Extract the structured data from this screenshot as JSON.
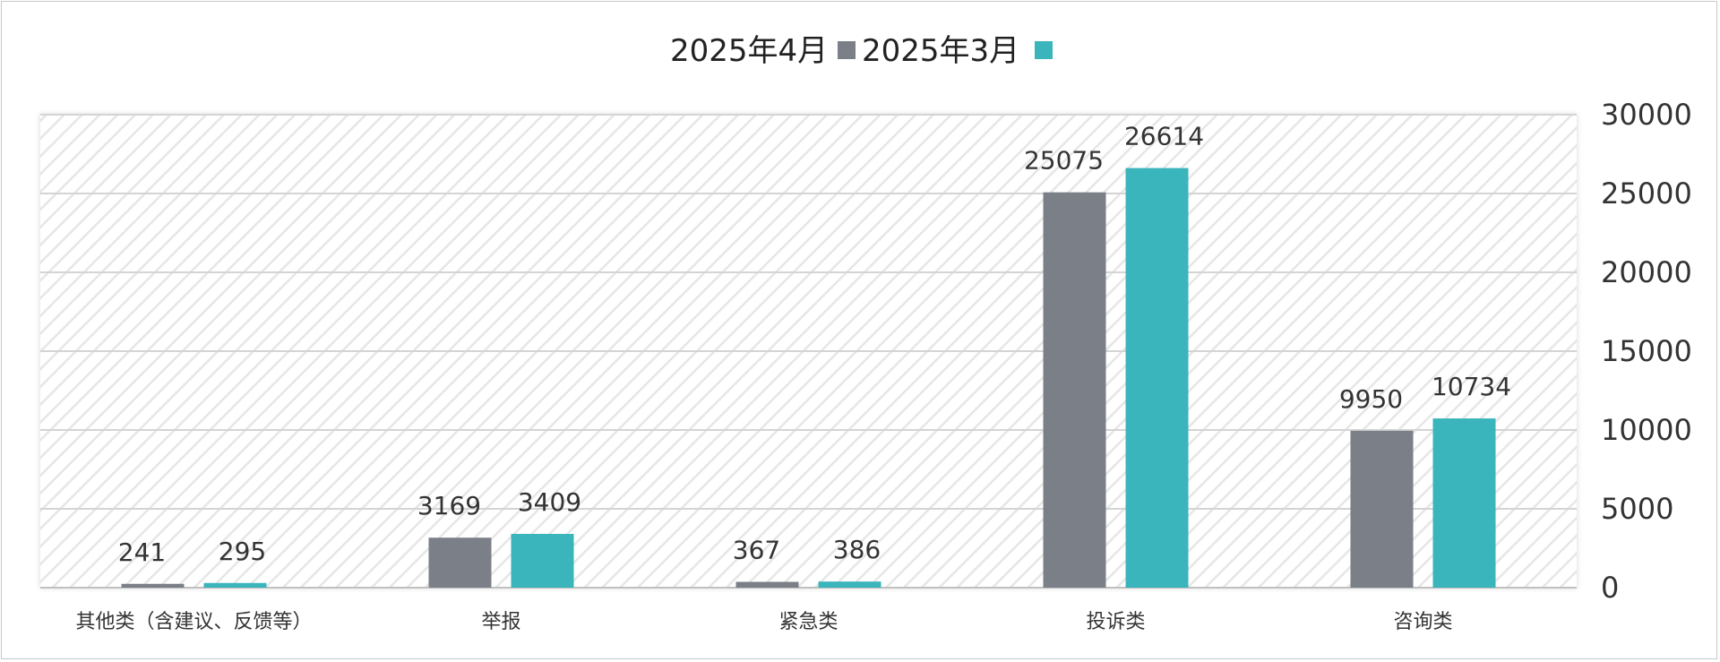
{
  "chart_data": {
    "type": "bar",
    "categories": [
      "咨询类",
      "投诉类",
      "紧急类",
      "举报",
      "其他类（含建议、反馈等）"
    ],
    "series": [
      {
        "name": "2025年3月",
        "values": [
          9950,
          25075,
          367,
          3169,
          241
        ],
        "color": "#7b7f87"
      },
      {
        "name": "2025年4月",
        "values": [
          10734,
          26614,
          386,
          3409,
          295
        ],
        "color": "#3ab5bb"
      }
    ],
    "y_ticks": [
      "0",
      "5000",
      "10000",
      "15000",
      "20000",
      "25000",
      "30000"
    ],
    "ylim": [
      0,
      30000
    ],
    "yaxis_side": "right",
    "grid": true,
    "plot_background": "diagonal-hatch",
    "legend_position": "top"
  }
}
